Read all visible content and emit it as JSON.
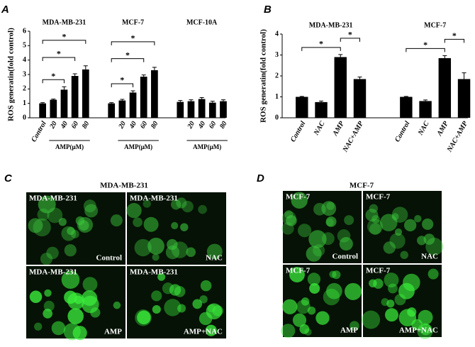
{
  "chart_data": [
    {
      "type": "bar",
      "letter": "A",
      "ylabel": "ROS generatin(fold control)",
      "ylim": [
        0,
        6
      ],
      "yticks": [
        0,
        1,
        2,
        3,
        4,
        5,
        6
      ],
      "color": "#000000",
      "groups": [
        {
          "name": "MDA-MB-231",
          "label": "AMP(μM)",
          "categories": [
            "Control",
            "20",
            "40",
            "60",
            "80"
          ],
          "values": [
            1,
            1.25,
            1.95,
            2.9,
            3.35
          ],
          "errors": [
            0.05,
            0.05,
            0.2,
            0.15,
            0.25
          ],
          "significance": [
            {
              "from": 0,
              "to": 2,
              "label": "*"
            },
            {
              "from": 0,
              "to": 3,
              "label": "*"
            },
            {
              "from": 0,
              "to": 4,
              "label": "*"
            }
          ]
        },
        {
          "name": "MCF-7",
          "label": "AMP(μM)",
          "categories": [
            null,
            "20",
            "40",
            "60",
            "80"
          ],
          "values": [
            1,
            1.2,
            1.75,
            2.85,
            3.3
          ],
          "errors": [
            0.05,
            0.08,
            0.12,
            0.12,
            0.2
          ],
          "significance": [
            {
              "from": 0,
              "to": 2,
              "label": "*"
            },
            {
              "from": 0,
              "to": 3,
              "label": "*"
            },
            {
              "from": 0,
              "to": 4,
              "label": "*"
            }
          ]
        },
        {
          "name": "MCF-10A",
          "label": "AMP(μM)",
          "categories": [
            null,
            "20",
            "40",
            "60",
            "80"
          ],
          "values": [
            1.1,
            1.15,
            1.3,
            1.05,
            1.15
          ],
          "errors": [
            0.1,
            0.1,
            0.1,
            0.1,
            0.1
          ],
          "significance": []
        }
      ]
    },
    {
      "type": "bar",
      "letter": "B",
      "ylabel": "ROS generatin(fold control)",
      "ylim": [
        0,
        4
      ],
      "yticks": [
        0,
        1,
        2,
        3,
        4
      ],
      "color": "#000000",
      "groups": [
        {
          "name": "MDA-MB-231",
          "categories": [
            "Control",
            "NAC",
            "AMP",
            "NAC+AMP"
          ],
          "values": [
            1,
            0.75,
            2.9,
            1.85
          ],
          "errors": [
            0.02,
            0.05,
            0.12,
            0.1
          ],
          "significance": [
            {
              "from": 0,
              "to": 2,
              "label": "*"
            },
            {
              "from": 2,
              "to": 3,
              "label": "*"
            }
          ]
        },
        {
          "name": "MCF-7",
          "categories": [
            "Control",
            "NAC",
            "AMP",
            "NAC+AMP"
          ],
          "values": [
            1,
            0.8,
            2.85,
            1.85
          ],
          "errors": [
            0.02,
            0.05,
            0.12,
            0.3
          ],
          "significance": [
            {
              "from": 0,
              "to": 2,
              "label": "*"
            },
            {
              "from": 2,
              "to": 3,
              "label": "*"
            }
          ]
        }
      ]
    }
  ],
  "panels": [
    {
      "letter": "C",
      "title": "MDA-MB-231",
      "images": [
        {
          "cell": "MDA-MB-231",
          "condition": "Control"
        },
        {
          "cell": "MDA-MB-231",
          "condition": "NAC"
        },
        {
          "cell": "MDA-MB-231",
          "condition": "AMP"
        },
        {
          "cell": "MDA-MB-231",
          "condition": "AMP+NAC"
        }
      ]
    },
    {
      "letter": "D",
      "title": "MCF-7",
      "images": [
        {
          "cell": "MCF-7",
          "condition": "Control"
        },
        {
          "cell": "MCF-7",
          "condition": "NAC"
        },
        {
          "cell": "MCF-7",
          "condition": "AMP"
        },
        {
          "cell": "MCF-7",
          "condition": "AMP+NAC"
        }
      ]
    }
  ]
}
